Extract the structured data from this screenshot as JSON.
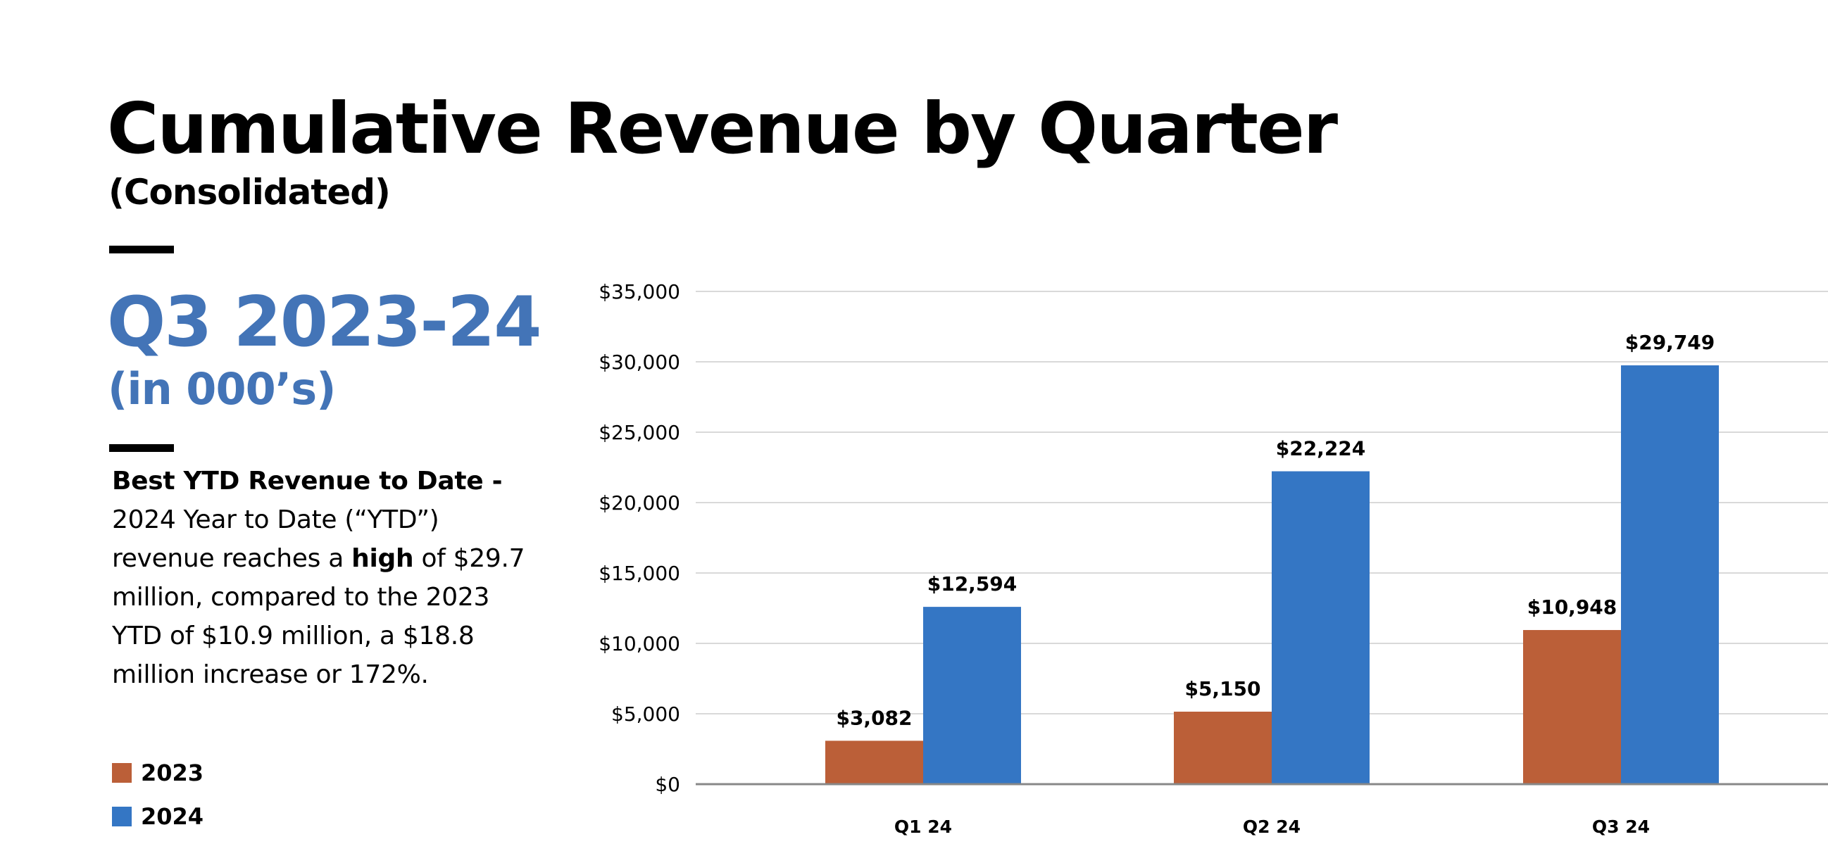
{
  "header": {
    "title": "Cumulative Revenue by Quarter",
    "subtitle": "(Consolidated)"
  },
  "sidebar": {
    "period": "Q3 2023-24",
    "units": "(in 000’s)",
    "summary": {
      "heading": "Best  YTD Revenue to Date -",
      "line2": "2024 Year to Date (“YTD”)",
      "line3_pre": "revenue reaches a ",
      "line3_bold": "high",
      "line3_post": " of $29.7",
      "line4": "million, compared to the 2023",
      "line5": "YTD of $10.9 million, a $18.8",
      "line6": "million increase or 172%."
    },
    "legend": [
      {
        "label": "2023",
        "color": "#bb5f38"
      },
      {
        "label": "2024",
        "color": "#3476c4"
      }
    ]
  },
  "chart_data": {
    "type": "bar",
    "title": "Cumulative Revenue by Quarter",
    "xlabel": "",
    "ylabel": "",
    "categories": [
      "Q1 24",
      "Q2 24",
      "Q3 24"
    ],
    "series": [
      {
        "name": "2023",
        "color": "#bb5f38",
        "values": [
          3082,
          5150,
          10948
        ],
        "labels": [
          "$3,082",
          "$5,150",
          "$10,948"
        ]
      },
      {
        "name": "2024",
        "color": "#3476c4",
        "values": [
          12594,
          22224,
          29749
        ],
        "labels": [
          "$12,594",
          "$22,224",
          "$29,749"
        ]
      }
    ],
    "ylim": [
      0,
      35000
    ],
    "yticks": [
      0,
      5000,
      10000,
      15000,
      20000,
      25000,
      30000,
      35000
    ],
    "ytick_labels": [
      "$0",
      "$5,000",
      "$10,000",
      "$15,000",
      "$20,000",
      "$25,000",
      "$30,000",
      "$35,000"
    ],
    "grid": true,
    "legend": "left",
    "gridline_color": "#d9d9d9",
    "axis_color": "#888888"
  }
}
